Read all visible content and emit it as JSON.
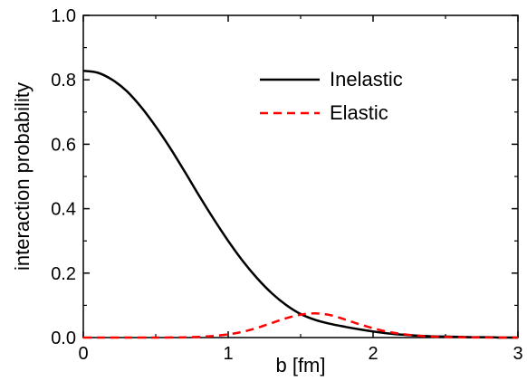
{
  "chart_data": {
    "type": "line",
    "xlabel": "b  [fm]",
    "ylabel": "interaction probability",
    "xlim": [
      0,
      3
    ],
    "ylim": [
      0,
      1.0
    ],
    "xticks": [
      0,
      1,
      2,
      3
    ],
    "xtick_labels": [
      "0",
      "1",
      "2",
      "3"
    ],
    "yticks": [
      0.0,
      0.2,
      0.4,
      0.6,
      0.8,
      1.0
    ],
    "ytick_labels": [
      "0.0",
      "0.2",
      "0.4",
      "0.6",
      "0.8",
      "1.0"
    ],
    "grid": false,
    "legend_position": "top-right",
    "series": [
      {
        "name": "Inelastic",
        "color": "#000000",
        "style": "solid",
        "x": [
          0,
          0.1,
          0.2,
          0.3,
          0.4,
          0.5,
          0.6,
          0.7,
          0.8,
          0.9,
          1.0,
          1.1,
          1.2,
          1.3,
          1.4,
          1.5,
          1.6,
          1.7,
          1.8,
          1.9,
          2.0,
          2.1,
          2.2,
          2.3,
          2.4,
          2.5,
          2.6,
          2.7,
          2.8,
          2.9,
          3.0
        ],
        "y": [
          0.828,
          0.822,
          0.8,
          0.765,
          0.715,
          0.655,
          0.588,
          0.515,
          0.44,
          0.368,
          0.3,
          0.238,
          0.184,
          0.138,
          0.101,
          0.073,
          0.055,
          0.043,
          0.034,
          0.026,
          0.019,
          0.013,
          0.009,
          0.006,
          0.004,
          0.003,
          0.002,
          0.001,
          0.001,
          0.0,
          0.0
        ]
      },
      {
        "name": "Elastic",
        "color": "#ff0000",
        "style": "dashed",
        "x": [
          0,
          0.1,
          0.2,
          0.3,
          0.4,
          0.5,
          0.6,
          0.7,
          0.8,
          0.9,
          1.0,
          1.1,
          1.2,
          1.3,
          1.4,
          1.5,
          1.6,
          1.7,
          1.8,
          1.9,
          2.0,
          2.1,
          2.2,
          2.3,
          2.4,
          2.5,
          2.6,
          2.7,
          2.8,
          2.9,
          3.0
        ],
        "y": [
          0,
          0,
          0,
          0,
          0,
          0,
          0.0002,
          0.0008,
          0.002,
          0.005,
          0.01,
          0.018,
          0.03,
          0.045,
          0.06,
          0.071,
          0.075,
          0.07,
          0.057,
          0.042,
          0.029,
          0.018,
          0.011,
          0.006,
          0.003,
          0.002,
          0.001,
          0.0005,
          0.0002,
          0.0001,
          0
        ]
      }
    ]
  }
}
